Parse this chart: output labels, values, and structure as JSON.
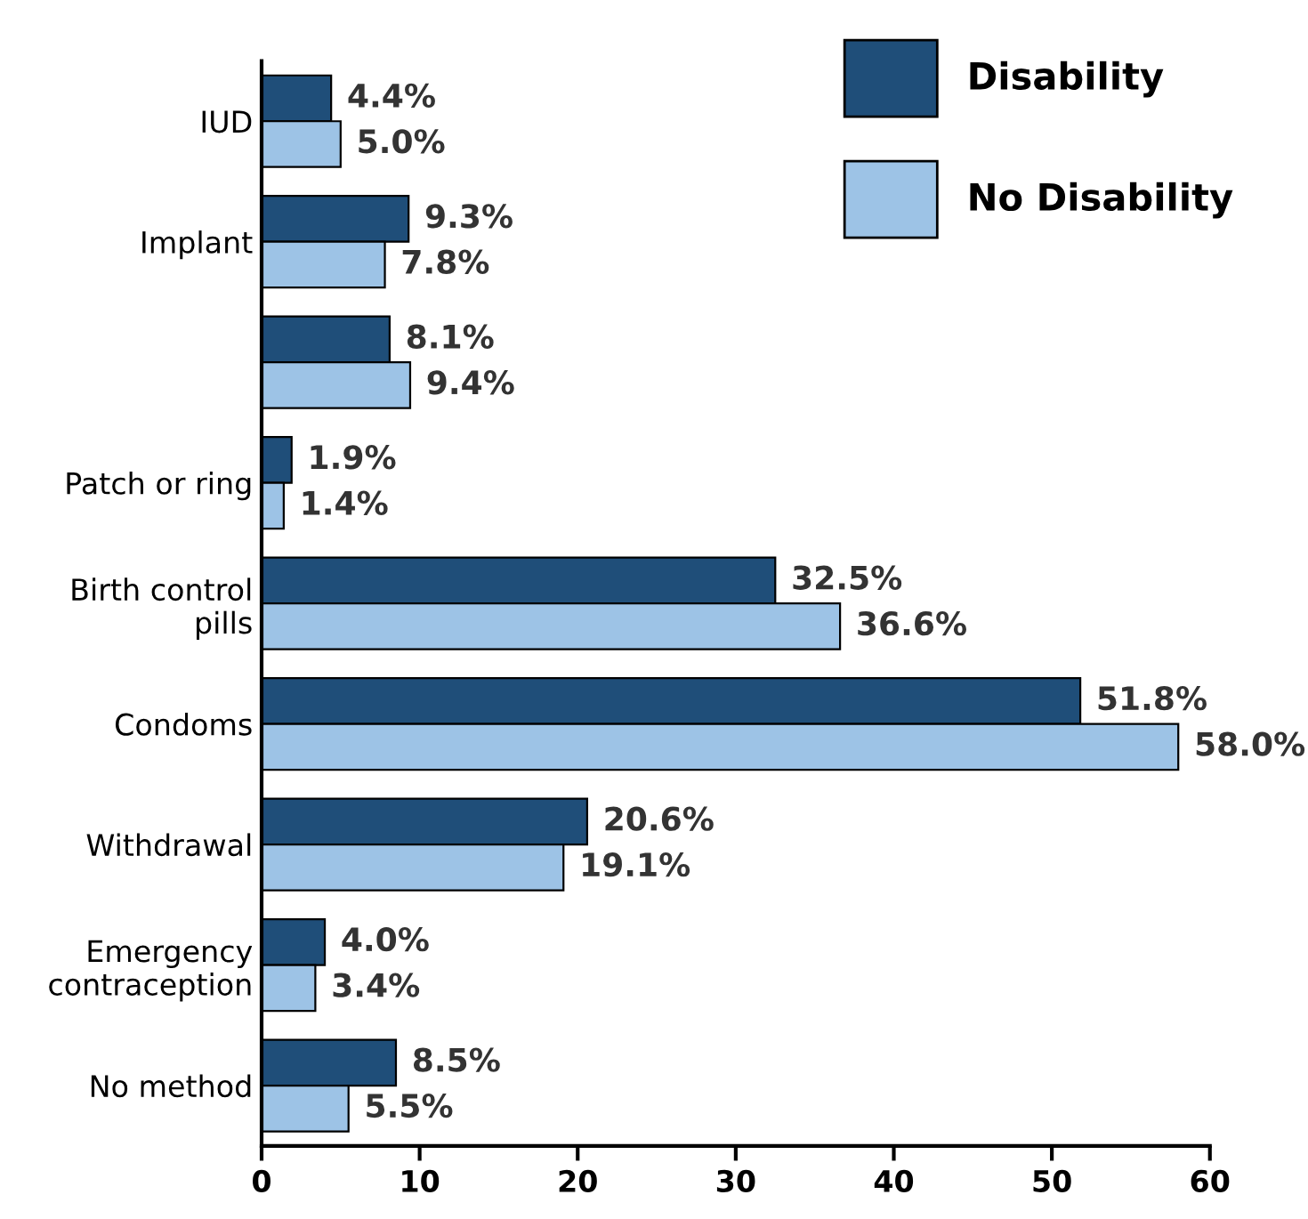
{
  "chart_data": {
    "type": "bar",
    "orientation": "horizontal",
    "categories": [
      "IUD",
      "Implant",
      null,
      "Patch or ring",
      "Birth control pills",
      "Condoms",
      "Withdrawal",
      "Emergency contraception",
      "No method"
    ],
    "series": [
      {
        "name": "Disability",
        "color": "#1f4e79",
        "values": [
          4.4,
          9.3,
          8.1,
          1.9,
          32.5,
          51.8,
          20.6,
          4.0,
          8.5
        ],
        "value_labels": [
          "4.4%",
          "9.3%",
          "8.1%",
          "1.9%",
          "32.5%",
          "51.8%",
          "20.6%",
          "4.0%",
          "8.5%"
        ]
      },
      {
        "name": "No Disability",
        "color": "#9dc3e6",
        "values": [
          5.0,
          7.8,
          9.4,
          1.4,
          36.6,
          58.0,
          19.1,
          3.4,
          5.5
        ],
        "value_labels": [
          "5.0%",
          "7.8%",
          "9.4%",
          "1.4%",
          "36.6%",
          "58.0%",
          "19.1%",
          "3.4%",
          "5.5%"
        ]
      }
    ],
    "xlim": [
      0,
      60
    ],
    "xticks": [
      0,
      10,
      20,
      30,
      40,
      50,
      60
    ],
    "grid": false,
    "legend": "top right"
  }
}
